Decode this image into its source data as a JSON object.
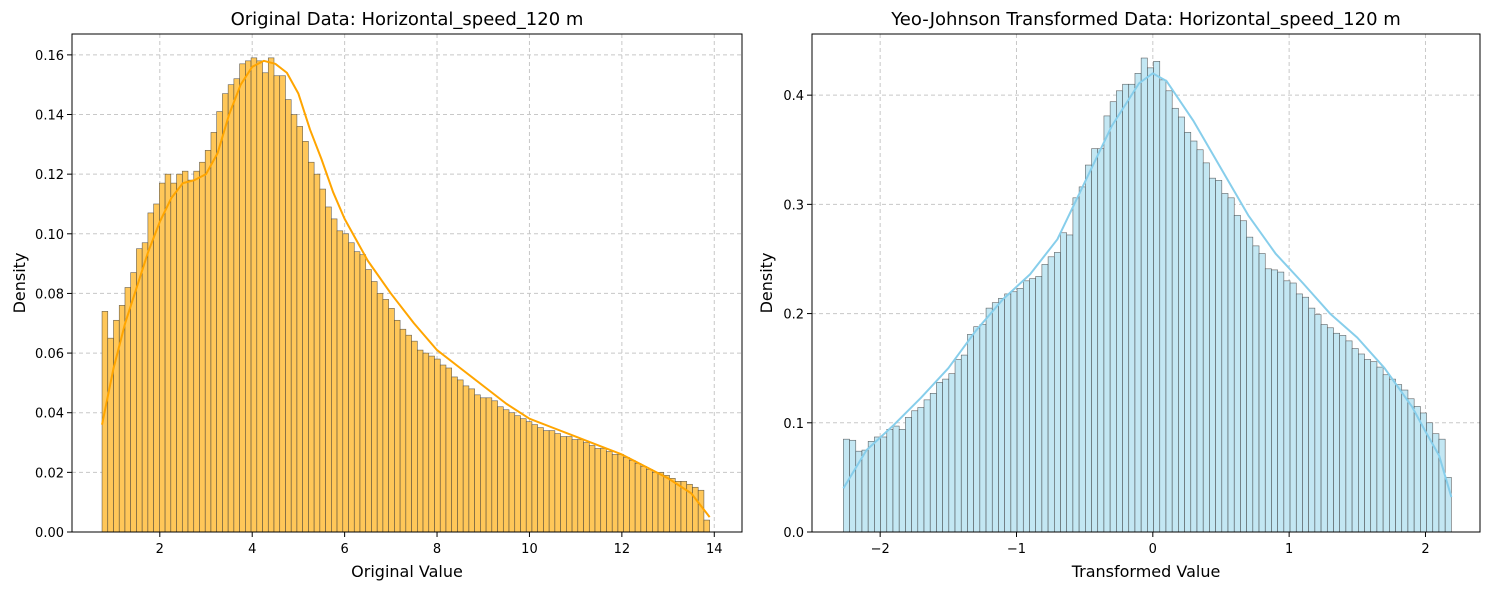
{
  "chart_data": [
    {
      "type": "histogram",
      "title": "Original Data: Horizontal_speed_120 m",
      "xlabel": "Original Value",
      "ylabel": "Density",
      "xlim": [
        0.1,
        14.6
      ],
      "ylim": [
        0,
        0.167
      ],
      "xticks": [
        2,
        4,
        6,
        8,
        10,
        12,
        14
      ],
      "yticks": [
        0.0,
        0.02,
        0.04,
        0.06,
        0.08,
        0.1,
        0.12,
        0.14,
        0.16
      ],
      "ytick_decimals": 2,
      "grid": true,
      "bar_color": "#ffc759",
      "kde_color": "#ffa500",
      "bin_start": 0.75,
      "bin_end": 13.9,
      "bars": [
        0.074,
        0.065,
        0.071,
        0.076,
        0.082,
        0.087,
        0.095,
        0.097,
        0.107,
        0.11,
        0.117,
        0.12,
        0.117,
        0.12,
        0.121,
        0.118,
        0.121,
        0.124,
        0.128,
        0.134,
        0.141,
        0.147,
        0.15,
        0.152,
        0.157,
        0.158,
        0.159,
        0.158,
        0.154,
        0.159,
        0.153,
        0.153,
        0.145,
        0.14,
        0.136,
        0.131,
        0.124,
        0.12,
        0.115,
        0.109,
        0.105,
        0.101,
        0.1,
        0.097,
        0.094,
        0.093,
        0.088,
        0.084,
        0.08,
        0.078,
        0.075,
        0.071,
        0.068,
        0.066,
        0.064,
        0.061,
        0.06,
        0.059,
        0.058,
        0.056,
        0.055,
        0.052,
        0.051,
        0.049,
        0.048,
        0.046,
        0.045,
        0.045,
        0.044,
        0.042,
        0.041,
        0.04,
        0.039,
        0.038,
        0.037,
        0.036,
        0.035,
        0.034,
        0.034,
        0.033,
        0.032,
        0.032,
        0.031,
        0.031,
        0.03,
        0.029,
        0.028,
        0.028,
        0.027,
        0.026,
        0.026,
        0.025,
        0.024,
        0.023,
        0.022,
        0.021,
        0.02,
        0.02,
        0.019,
        0.018,
        0.017,
        0.017,
        0.016,
        0.015,
        0.014,
        0.004
      ],
      "kde": {
        "x": [
          0.75,
          1.0,
          1.25,
          1.5,
          1.75,
          2.0,
          2.25,
          2.5,
          2.75,
          3.0,
          3.25,
          3.5,
          3.75,
          4.0,
          4.25,
          4.5,
          4.75,
          5.0,
          5.25,
          5.5,
          5.75,
          6.0,
          6.5,
          7.0,
          7.5,
          8.0,
          8.5,
          9.0,
          9.5,
          10.0,
          10.5,
          11.0,
          11.5,
          12.0,
          12.5,
          13.0,
          13.5,
          13.9
        ],
        "y": [
          0.036,
          0.055,
          0.07,
          0.082,
          0.094,
          0.104,
          0.112,
          0.117,
          0.118,
          0.12,
          0.127,
          0.14,
          0.15,
          0.156,
          0.158,
          0.157,
          0.154,
          0.147,
          0.135,
          0.125,
          0.114,
          0.105,
          0.091,
          0.08,
          0.07,
          0.061,
          0.055,
          0.049,
          0.043,
          0.038,
          0.035,
          0.032,
          0.029,
          0.026,
          0.022,
          0.018,
          0.013,
          0.005
        ]
      }
    },
    {
      "type": "histogram",
      "title": "Yeo-Johnson Transformed Data: Horizontal_speed_120 m",
      "xlabel": "Transformed Value",
      "ylabel": "Density",
      "xlim": [
        -2.5,
        2.4
      ],
      "ylim": [
        0,
        0.456
      ],
      "xticks": [
        -2,
        -1,
        0,
        1,
        2
      ],
      "xtick_labels": [
        "−2",
        "−1",
        "0",
        "1",
        "2"
      ],
      "yticks": [
        0.0,
        0.1,
        0.2,
        0.3,
        0.4
      ],
      "ytick_decimals": 1,
      "grid": true,
      "bar_color": "#c3e7f3",
      "kde_color": "#87ceeb",
      "bin_start": -2.27,
      "bin_end": 2.19,
      "bars": [
        0.085,
        0.084,
        0.074,
        0.075,
        0.083,
        0.087,
        0.087,
        0.094,
        0.097,
        0.094,
        0.105,
        0.111,
        0.114,
        0.121,
        0.127,
        0.137,
        0.14,
        0.145,
        0.158,
        0.162,
        0.181,
        0.188,
        0.19,
        0.205,
        0.21,
        0.214,
        0.218,
        0.22,
        0.223,
        0.23,
        0.232,
        0.234,
        0.245,
        0.252,
        0.256,
        0.274,
        0.272,
        0.306,
        0.316,
        0.336,
        0.351,
        0.351,
        0.381,
        0.394,
        0.404,
        0.41,
        0.41,
        0.42,
        0.434,
        0.425,
        0.431,
        0.414,
        0.404,
        0.388,
        0.38,
        0.366,
        0.358,
        0.35,
        0.338,
        0.324,
        0.322,
        0.31,
        0.306,
        0.29,
        0.285,
        0.27,
        0.262,
        0.255,
        0.241,
        0.24,
        0.238,
        0.23,
        0.228,
        0.218,
        0.215,
        0.205,
        0.199,
        0.19,
        0.187,
        0.182,
        0.18,
        0.175,
        0.168,
        0.163,
        0.158,
        0.156,
        0.151,
        0.144,
        0.14,
        0.135,
        0.13,
        0.122,
        0.115,
        0.109,
        0.1,
        0.09,
        0.085,
        0.05
      ],
      "kde": {
        "x": [
          -2.27,
          -2.1,
          -1.9,
          -1.7,
          -1.5,
          -1.3,
          -1.1,
          -0.9,
          -0.7,
          -0.5,
          -0.3,
          -0.1,
          0.0,
          0.1,
          0.3,
          0.5,
          0.7,
          0.9,
          1.1,
          1.3,
          1.5,
          1.7,
          1.9,
          2.0,
          2.1,
          2.19
        ],
        "y": [
          0.04,
          0.075,
          0.098,
          0.123,
          0.15,
          0.184,
          0.213,
          0.236,
          0.268,
          0.32,
          0.372,
          0.411,
          0.42,
          0.413,
          0.376,
          0.333,
          0.29,
          0.255,
          0.228,
          0.2,
          0.178,
          0.15,
          0.115,
          0.092,
          0.07,
          0.032
        ]
      }
    }
  ]
}
